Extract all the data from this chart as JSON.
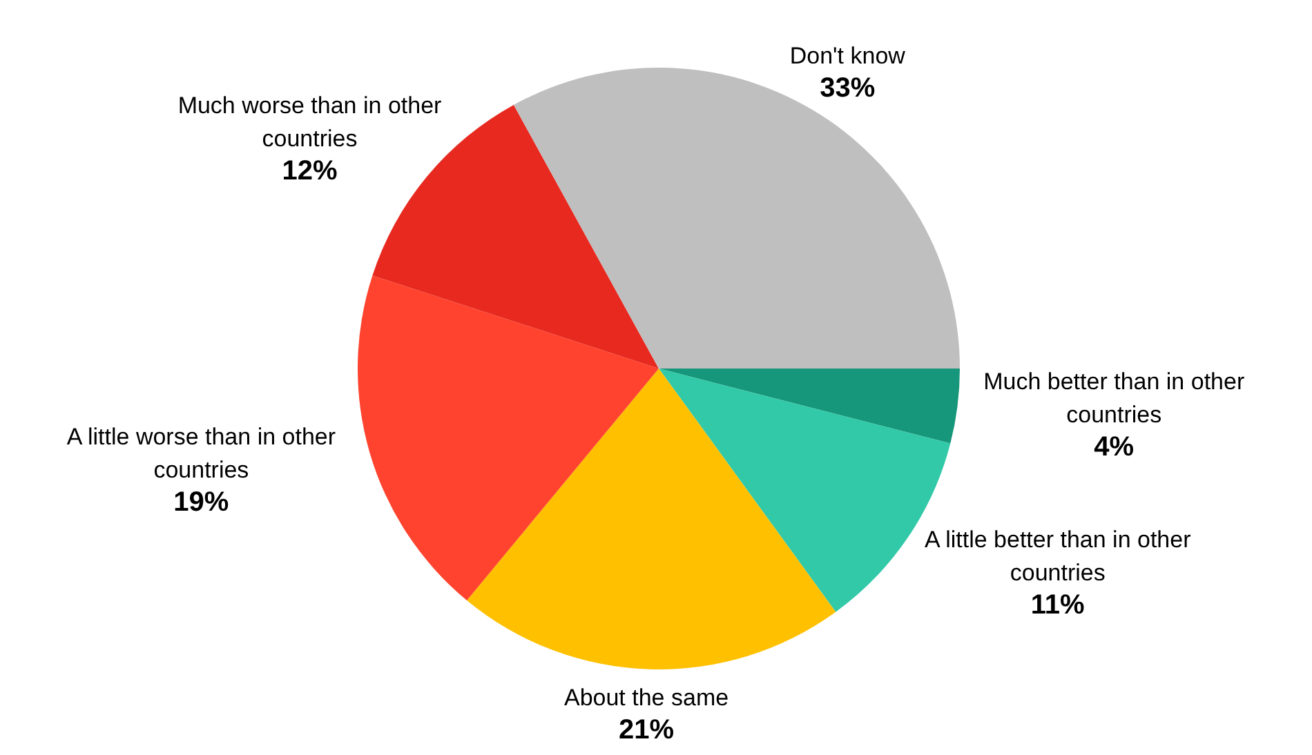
{
  "chart_data": {
    "type": "pie",
    "categories": [
      "Much better than in other countries",
      "A little better than in other countries",
      "About the same",
      "A little worse than in other countries",
      "Much worse than in other countries",
      "Don't know"
    ],
    "values": [
      4,
      11,
      21,
      19,
      12,
      33
    ],
    "colors": [
      "#16967a",
      "#31c9a8",
      "#ffc000",
      "#ff432e",
      "#e8291f",
      "#bfbfbf"
    ],
    "value_labels": [
      "4%",
      "11%",
      "21%",
      "19%",
      "12%",
      "33%"
    ],
    "legend": false
  }
}
